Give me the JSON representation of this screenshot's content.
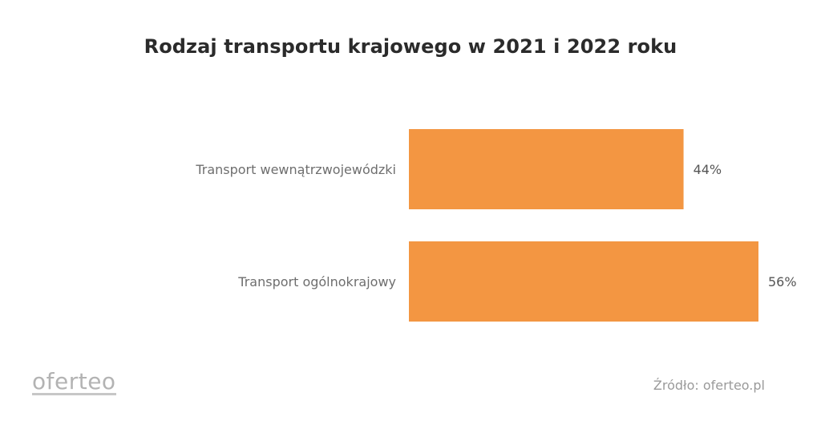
{
  "chart_data": {
    "type": "bar",
    "orientation": "horizontal",
    "title": "Rodzaj transportu krajowego w 2021 i 2022 roku",
    "categories": [
      "Transport wewnątrzwojewódzki",
      "Transport ogólnokrajowy"
    ],
    "values": [
      44,
      56
    ],
    "value_suffix": "%",
    "xlim": [
      0,
      56
    ],
    "grid": false,
    "legend": "none",
    "bar_color": "#F39642"
  },
  "branding": {
    "logo_text": "oferteo",
    "source_text": "Źródło: oferteo.pl"
  }
}
